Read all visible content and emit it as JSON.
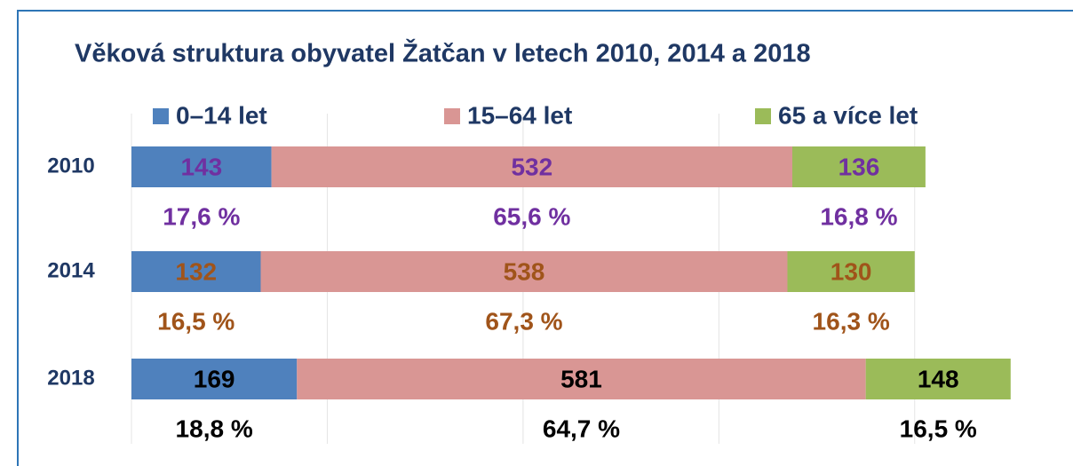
{
  "chart_data": {
    "type": "stacked-bar-horizontal",
    "title": "Věková struktura obyvatel Žatčan v letech 2010, 2014 a 2018",
    "categories": [
      "2010",
      "2014",
      "2018"
    ],
    "series": [
      {
        "name": "0–14 let",
        "color": "#4f81bd",
        "values": [
          143,
          132,
          169
        ],
        "shares": [
          17.6,
          16.5,
          18.8
        ],
        "share_labels": [
          "17,6 %",
          "16,5 %",
          "18,8 %"
        ]
      },
      {
        "name": "15–64 let",
        "color": "#d99694",
        "values": [
          532,
          538,
          581
        ],
        "shares": [
          65.6,
          67.3,
          64.7
        ],
        "share_labels": [
          "65,6 %",
          "67,3 %",
          "64,7 %"
        ]
      },
      {
        "name": "65 a více let",
        "color": "#9bbb59",
        "values": [
          136,
          130,
          148
        ],
        "shares": [
          16.8,
          16.3,
          16.5
        ],
        "share_labels": [
          "16,8 %",
          "16,3 %",
          "16,5 %"
        ]
      }
    ],
    "label_colors": [
      "#7030a0",
      "#a0541a",
      "#000000"
    ],
    "xlim": [
      0,
      900
    ],
    "xticks": [
      0,
      200,
      400,
      600,
      800
    ],
    "grid": true
  }
}
